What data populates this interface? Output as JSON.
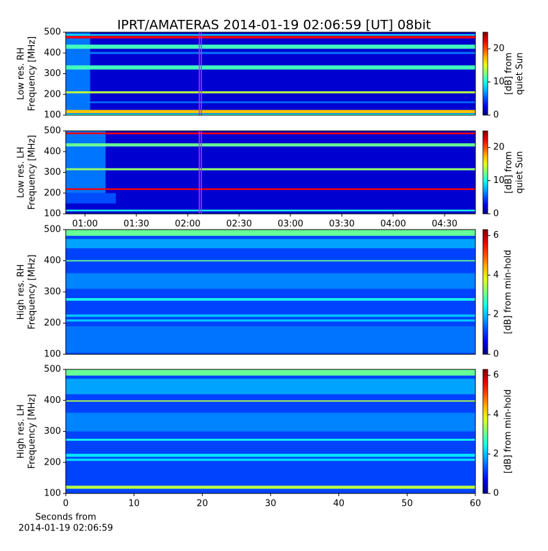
{
  "chart_data": [
    {
      "type": "spectrogram",
      "title": "IPRT/AMATERAS 2014-01-19 02:06:59 [UT]   08bit",
      "ylabel": [
        "Low res. RH",
        "Frequency [MHz]"
      ],
      "ylim": [
        100,
        500
      ],
      "yticks": [
        100,
        200,
        300,
        400,
        500
      ],
      "xlim": [
        0.813,
        4.8
      ],
      "colormap": "jet",
      "clim": [
        0,
        25
      ],
      "cticks": [
        0,
        10,
        20
      ],
      "clabel": [
        "[dB] from",
        "quiet Sun"
      ],
      "background": 2,
      "markers": [
        2.113,
        2.133
      ],
      "marker_color": "#c030ff",
      "bands": [
        {
          "xlim": [
            0.813,
            1.05
          ],
          "ylim": [
            120,
            500
          ],
          "value": 6
        },
        {
          "ylim": [
            470,
            482
          ],
          "value": 22
        },
        {
          "ylim": [
            484,
            490
          ],
          "value": 9
        },
        {
          "ylim": [
            420,
            440
          ],
          "value": 11
        },
        {
          "ylim": [
            395,
            405
          ],
          "value": 6
        },
        {
          "ylim": [
            320,
            340
          ],
          "value": 11
        },
        {
          "ylim": [
            205,
            215
          ],
          "value": 14
        },
        {
          "ylim": [
            158,
            166
          ],
          "value": 6
        },
        {
          "ylim": [
            110,
            125
          ],
          "value": 17
        },
        {
          "ylim": [
            100,
            108
          ],
          "value": 10
        }
      ]
    },
    {
      "type": "spectrogram",
      "ylabel": [
        "Low res. LH",
        "Frequency [MHz]"
      ],
      "ylim": [
        100,
        500
      ],
      "yticks": [
        100,
        200,
        300,
        400,
        500
      ],
      "xlim": [
        0.813,
        4.8
      ],
      "xticks": [
        {
          "value": 1.0,
          "label": "01:00"
        },
        {
          "value": 1.5,
          "label": "01:30"
        },
        {
          "value": 2.0,
          "label": "02:00"
        },
        {
          "value": 2.5,
          "label": "02:30"
        },
        {
          "value": 3.0,
          "label": "03:00"
        },
        {
          "value": 3.5,
          "label": "03:30"
        },
        {
          "value": 4.0,
          "label": "04:00"
        },
        {
          "value": 4.5,
          "label": "04:30"
        }
      ],
      "colormap": "jet",
      "clim": [
        0,
        25
      ],
      "cticks": [
        0,
        10,
        20
      ],
      "clabel": [
        "[dB] from",
        "quiet Sun"
      ],
      "background": 2,
      "markers": [
        2.113,
        2.133
      ],
      "marker_color": "#c030ff",
      "bands": [
        {
          "xlim": [
            0.813,
            1.2
          ],
          "ylim": [
            200,
            500
          ],
          "value": 6
        },
        {
          "xlim": [
            0.813,
            1.3
          ],
          "ylim": [
            150,
            200
          ],
          "value": 5
        },
        {
          "ylim": [
            484,
            492
          ],
          "value": 22
        },
        {
          "ylim": [
            425,
            440
          ],
          "value": 12
        },
        {
          "ylim": [
            310,
            320
          ],
          "value": 13
        },
        {
          "ylim": [
            215,
            223
          ],
          "value": 22
        },
        {
          "ylim": [
            112,
            120
          ],
          "value": 10
        }
      ]
    },
    {
      "type": "spectrogram",
      "ylabel": [
        "High res. RH",
        "Frequency [MHz]"
      ],
      "ylim": [
        100,
        500
      ],
      "yticks": [
        100,
        200,
        300,
        400,
        500
      ],
      "xlim": [
        0,
        60
      ],
      "colormap": "jet",
      "clim": [
        0,
        6.3
      ],
      "cticks": [
        0,
        2,
        4,
        6
      ],
      "clabel": [
        "[dB] from min-hold"
      ],
      "background": 1.2,
      "bands": [
        {
          "ylim": [
            480,
            500
          ],
          "value": 3
        },
        {
          "ylim": [
            440,
            470
          ],
          "value": 1.8
        },
        {
          "ylim": [
            398,
            402
          ],
          "value": 3
        },
        {
          "ylim": [
            310,
            360
          ],
          "value": 1.6
        },
        {
          "ylim": [
            272,
            280
          ],
          "value": 2.5
        },
        {
          "ylim": [
            220,
            228
          ],
          "value": 2
        },
        {
          "ylim": [
            205,
            212
          ],
          "value": 2
        },
        {
          "ylim": [
            105,
            190
          ],
          "value": 1.5
        }
      ]
    },
    {
      "type": "spectrogram",
      "ylabel": [
        "High res. LH",
        "Frequency [MHz]"
      ],
      "ylim": [
        100,
        500
      ],
      "yticks": [
        100,
        200,
        300,
        400,
        500
      ],
      "xlim": [
        0,
        60
      ],
      "xticks": [
        0,
        10,
        20,
        30,
        40,
        50,
        60
      ],
      "xlabel": [
        "Seconds from",
        "2014-01-19 02:06:59"
      ],
      "colormap": "jet",
      "clim": [
        0,
        6.3
      ],
      "cticks": [
        0,
        2,
        4,
        6
      ],
      "clabel": [
        "[dB] from min-hold"
      ],
      "background": 1.2,
      "bands": [
        {
          "ylim": [
            480,
            500
          ],
          "value": 3
        },
        {
          "ylim": [
            420,
            470
          ],
          "value": 1.8
        },
        {
          "ylim": [
            396,
            400
          ],
          "value": 3.5
        },
        {
          "ylim": [
            300,
            360
          ],
          "value": 1.6
        },
        {
          "ylim": [
            270,
            276
          ],
          "value": 2.5
        },
        {
          "ylim": [
            218,
            228
          ],
          "value": 2.2
        },
        {
          "ylim": [
            205,
            212
          ],
          "value": 2.2
        },
        {
          "ylim": [
            115,
            125
          ],
          "value": 3.5
        }
      ]
    }
  ]
}
